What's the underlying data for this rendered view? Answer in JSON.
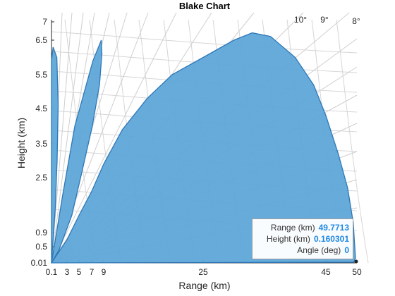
{
  "chart_data": {
    "type": "area",
    "title": "Blake Chart",
    "xlabel": "Range (km)",
    "ylabel": "Height (km)",
    "xlim": [
      0.01,
      50
    ],
    "ylim": [
      0.01,
      7
    ],
    "x_ticks": [
      "0.1",
      "3",
      "5",
      "7",
      "9",
      "25",
      "45",
      "50"
    ],
    "y_ticks": [
      "0.01",
      "0.5",
      "0.9",
      "2.5",
      "3.5",
      "4.5",
      "5.5",
      "6.5",
      "7"
    ],
    "angle_labels": [
      "10°",
      "9°",
      "8°"
    ],
    "series": [
      {
        "values": [
          [
            0.01,
            0.01
          ],
          [
            0.04,
            1.7
          ],
          [
            0.08,
            3.8
          ],
          [
            0.08,
            5.9
          ],
          [
            0.4,
            6.3
          ],
          [
            1.1,
            6.0
          ],
          [
            1.35,
            4.6
          ],
          [
            1.15,
            3.0
          ],
          [
            0.8,
            1.6
          ],
          [
            0.4,
            0.7
          ],
          [
            0.01,
            0.01
          ]
        ]
      },
      {
        "values": [
          [
            0.01,
            0.01
          ],
          [
            2.2,
            2.0
          ],
          [
            4.3,
            4.0
          ],
          [
            7.2,
            5.9
          ],
          [
            8.6,
            6.5
          ],
          [
            8.7,
            6.1
          ],
          [
            8.3,
            5.2
          ],
          [
            7.1,
            4.0
          ],
          [
            5.5,
            2.7
          ],
          [
            3.8,
            1.4
          ],
          [
            1.5,
            0.4
          ],
          [
            0.01,
            0.01
          ]
        ]
      },
      {
        "values": [
          [
            0.01,
            0.01
          ],
          [
            3,
            0.7
          ],
          [
            5,
            1.4
          ],
          [
            7,
            2.1
          ],
          [
            9,
            2.9
          ],
          [
            12,
            3.9
          ],
          [
            16,
            4.8
          ],
          [
            20,
            5.5
          ],
          [
            25,
            6.0
          ],
          [
            30,
            6.5
          ],
          [
            33,
            6.7
          ],
          [
            36,
            6.6
          ],
          [
            40,
            6.0
          ],
          [
            43,
            5.2
          ],
          [
            45,
            4.3
          ],
          [
            47,
            3.2
          ],
          [
            48.5,
            2.2
          ],
          [
            49.4,
            1.2
          ],
          [
            49.77,
            0.16
          ],
          [
            49.5,
            0.03
          ],
          [
            0.01,
            0.01
          ]
        ]
      }
    ],
    "grid": true,
    "colors": {
      "fill": "#5ea6d8",
      "stroke": "#2f78b7",
      "grid": "#d6d6d6",
      "axis": "#262626",
      "marker": "#222222"
    }
  },
  "datatip": {
    "range_label": "Range  (km)",
    "range_value": "49.7713",
    "height_label": "Height  (km)",
    "height_value": "0.160301",
    "angle_label": "Angle  (deg)",
    "angle_value": "0"
  }
}
